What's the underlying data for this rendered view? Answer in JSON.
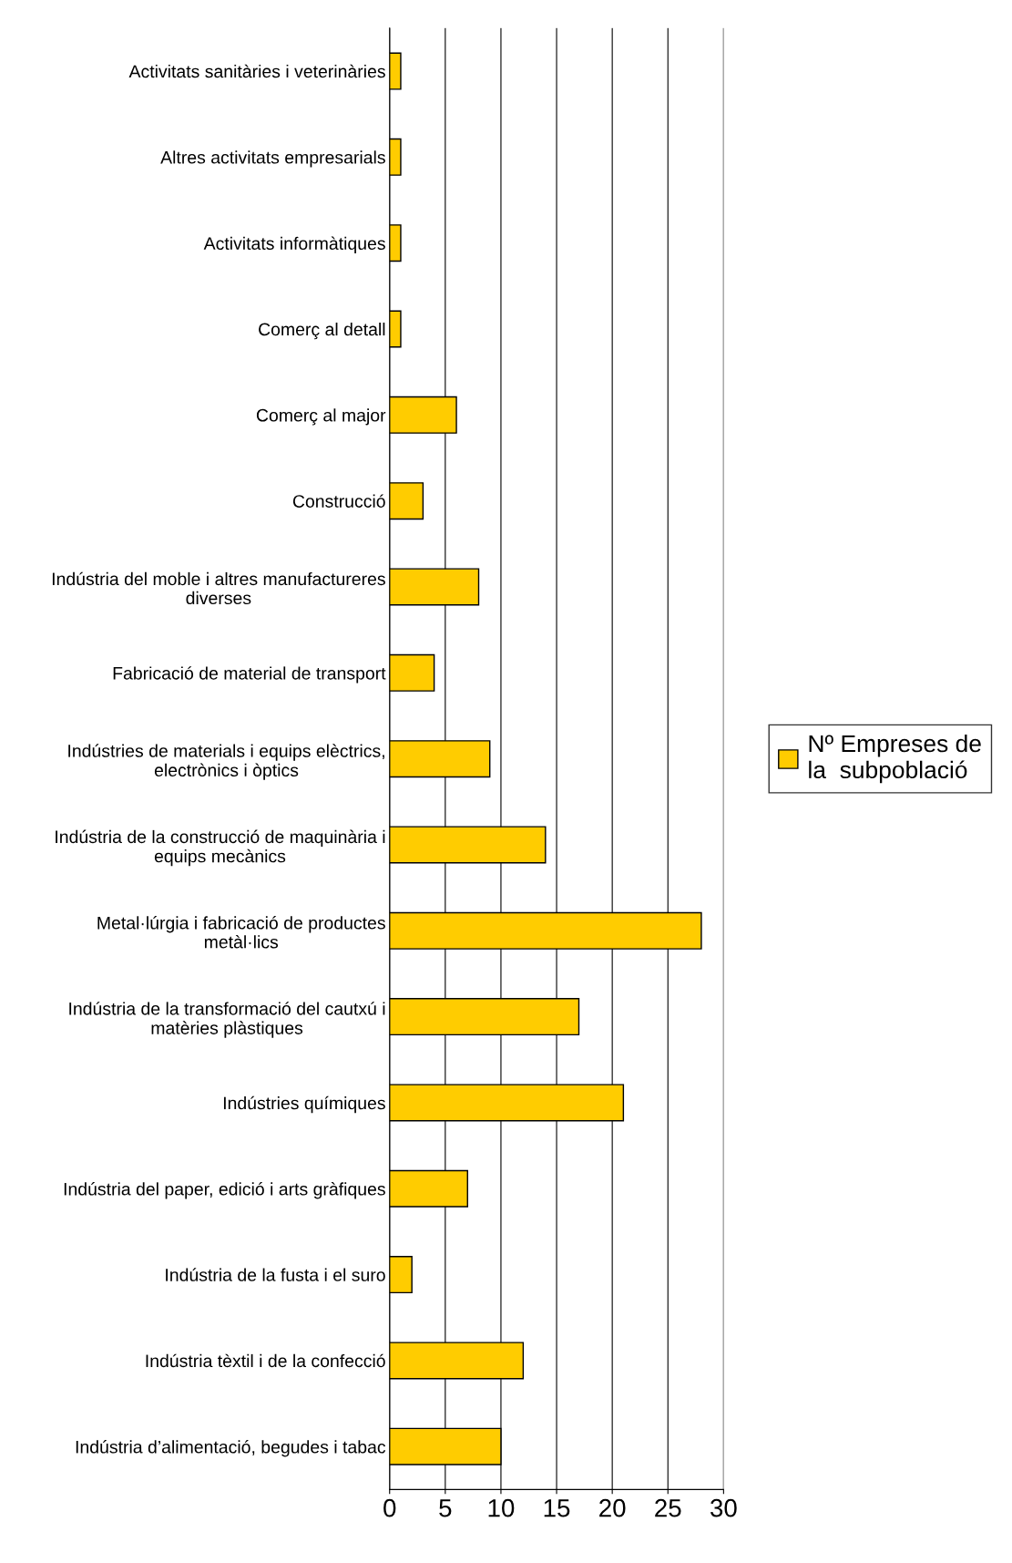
{
  "chart_data": {
    "type": "bar",
    "orientation": "horizontal",
    "categories": [
      "Activitats sanitàries i veterinàries",
      "Altres activitats empresarials",
      "Activitats informàtiques",
      "Comerç al detall",
      "Comerç al major",
      "Construcció",
      "Indústria del moble i altres manufactureres\ndiverses",
      "Fabricació de material de transport",
      "Indústries de materials i equips elèctrics,\nelectrònics i òptics",
      "Indústria de la construcció de maquinària i\nequips mecànics",
      "Metal·lúrgia i fabricació de productes\nmetàl·lics",
      "Indústria de la transformació del cautxú i\nmatèries plàstiques",
      "Indústries químiques",
      "Indústria del paper, edició i arts gràfiques",
      "Indústria de la fusta i el suro",
      "Indústria tèxtil i de la confecció",
      "Indústria d’alimentació, begudes i tabac"
    ],
    "series": [
      {
        "name": "Nº Empreses de\nla  subpoblació",
        "color": "#ffcc00",
        "values": [
          1,
          1,
          1,
          1,
          6,
          3,
          8,
          4,
          9,
          14,
          28,
          17,
          21,
          7,
          2,
          12,
          10
        ]
      }
    ],
    "xlim": [
      0,
      30
    ],
    "xticks": [
      0,
      5,
      10,
      15,
      20,
      25,
      30
    ],
    "grid": "x",
    "legend": "right"
  }
}
